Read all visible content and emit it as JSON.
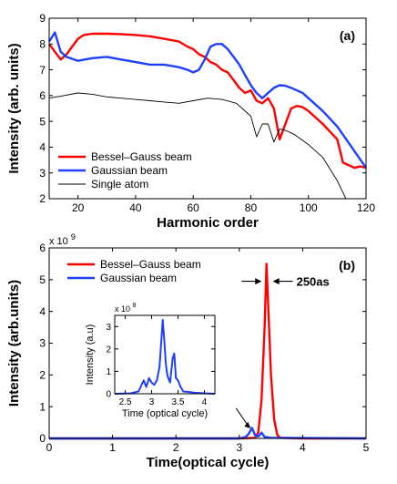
{
  "chart_data": [
    {
      "type": "line",
      "panel_label": "(a)",
      "xlabel": "Harmonic order",
      "ylabel": "Intensity (arb. units)",
      "xlim": [
        10,
        120
      ],
      "ylim": [
        2,
        9
      ],
      "xticks": [
        20,
        40,
        60,
        80,
        100,
        120
      ],
      "yticks": [
        2,
        3,
        4,
        5,
        6,
        7,
        8,
        9
      ],
      "legend_position": "lower-left",
      "series": [
        {
          "name": "Bessel–Gauss beam",
          "color": "#ff0000",
          "x": [
            10,
            12,
            14,
            16,
            18,
            20,
            22,
            25,
            30,
            35,
            40,
            45,
            50,
            55,
            58,
            60,
            62,
            64,
            66,
            68,
            70,
            72,
            74,
            76,
            78,
            80,
            82,
            84,
            86,
            88,
            90,
            92,
            94,
            96,
            98,
            100,
            105,
            110,
            112,
            114,
            116,
            118,
            120
          ],
          "y": [
            8.0,
            7.7,
            7.4,
            7.6,
            7.9,
            8.2,
            8.35,
            8.4,
            8.4,
            8.38,
            8.35,
            8.3,
            8.2,
            8.1,
            7.9,
            7.8,
            7.6,
            7.5,
            7.3,
            7.2,
            7.0,
            6.9,
            6.6,
            6.3,
            6.1,
            6.2,
            5.8,
            5.7,
            5.9,
            5.5,
            4.3,
            4.9,
            5.5,
            5.6,
            5.55,
            5.4,
            4.9,
            4.3,
            3.4,
            3.3,
            3.2,
            3.25,
            3.2
          ]
        },
        {
          "name": "Gaussian beam",
          "color": "#1f3fff",
          "x": [
            10,
            12,
            14,
            16,
            20,
            25,
            30,
            35,
            40,
            45,
            50,
            55,
            58,
            60,
            62,
            64,
            66,
            68,
            70,
            72,
            74,
            76,
            78,
            80,
            82,
            84,
            86,
            88,
            90,
            92,
            94,
            96,
            98,
            100,
            105,
            110,
            115,
            120
          ],
          "y": [
            8.1,
            8.45,
            7.7,
            7.5,
            7.35,
            7.45,
            7.5,
            7.4,
            7.3,
            7.2,
            7.2,
            7.1,
            7.0,
            6.9,
            7.0,
            7.4,
            7.9,
            8.0,
            8.0,
            7.8,
            7.5,
            7.2,
            6.8,
            6.4,
            6.1,
            5.9,
            6.1,
            6.3,
            6.4,
            6.38,
            6.3,
            6.2,
            6.1,
            5.9,
            5.4,
            4.8,
            4.0,
            3.2
          ]
        },
        {
          "name": "Single atom",
          "color": "#000000",
          "x": [
            10,
            15,
            20,
            25,
            30,
            35,
            40,
            45,
            50,
            55,
            60,
            65,
            70,
            75,
            80,
            82,
            84,
            86,
            88,
            90,
            92,
            95,
            100,
            105,
            110,
            113
          ],
          "y": [
            5.9,
            6.0,
            6.1,
            6.05,
            5.95,
            5.9,
            5.85,
            5.8,
            5.75,
            5.7,
            5.8,
            5.9,
            5.85,
            5.7,
            5.2,
            4.4,
            4.9,
            4.9,
            4.2,
            4.7,
            4.65,
            4.5,
            4.1,
            3.6,
            2.7,
            2.0
          ]
        }
      ]
    },
    {
      "type": "line",
      "panel_label": "(b)",
      "xlabel": "Time(optical cycle)",
      "ylabel": "Intensity (arb.units)",
      "y_exponent": "x 10",
      "y_exponent_power": "9",
      "xlim": [
        0,
        5
      ],
      "ylim": [
        0,
        6
      ],
      "xticks": [
        0,
        1,
        2,
        3,
        4,
        5
      ],
      "yticks": [
        0,
        1,
        2,
        3,
        4,
        5,
        6
      ],
      "legend_position": "top-left",
      "annotation": "250as",
      "series": [
        {
          "name": "Bessel–Gauss beam",
          "color": "#ff0000",
          "x": [
            0,
            3.0,
            3.25,
            3.3,
            3.35,
            3.4,
            3.43,
            3.46,
            3.5,
            3.55,
            3.6,
            3.65,
            4.0,
            5.0
          ],
          "y": [
            0,
            0,
            0.02,
            0.2,
            1.2,
            3.5,
            5.5,
            4.0,
            2.0,
            0.6,
            0.1,
            0.02,
            0,
            0
          ]
        },
        {
          "name": "Gaussian beam",
          "color": "#1f3fff",
          "x": [
            0,
            3.0,
            3.1,
            3.15,
            3.2,
            3.25,
            3.3,
            3.35,
            3.4,
            3.5,
            5.0
          ],
          "y": [
            0,
            0,
            0.05,
            0.15,
            0.33,
            0.1,
            0.06,
            0.18,
            0.05,
            0.02,
            0
          ]
        }
      ]
    },
    {
      "type": "line",
      "inset": true,
      "xlabel": "Time (optical cycle)",
      "ylabel": "Intensity (a.u)",
      "y_exponent": "x 10",
      "y_exponent_power": "8",
      "xlim": [
        2.3,
        4.2
      ],
      "ylim": [
        0,
        3.5
      ],
      "xticks": [
        2.5,
        3,
        3.5,
        4
      ],
      "xtick_labels": [
        "2.5",
        "3",
        "3.5",
        "4"
      ],
      "yticks": [
        0,
        1,
        2,
        3
      ],
      "series": [
        {
          "color": "#1f3fff",
          "x": [
            2.3,
            2.6,
            2.75,
            2.85,
            2.9,
            2.95,
            3.0,
            3.05,
            3.1,
            3.15,
            3.18,
            3.21,
            3.24,
            3.27,
            3.3,
            3.35,
            3.4,
            3.43,
            3.46,
            3.5,
            3.55,
            3.6,
            3.7,
            3.8,
            4.0,
            4.2
          ],
          "y": [
            0,
            0.02,
            0.1,
            0.6,
            0.3,
            0.7,
            0.5,
            0.4,
            0.6,
            1.2,
            2.2,
            3.3,
            2.4,
            1.3,
            0.8,
            0.5,
            1.6,
            1.8,
            0.7,
            0.6,
            0.3,
            0.1,
            0.08,
            0.05,
            0.02,
            0
          ]
        }
      ]
    }
  ]
}
